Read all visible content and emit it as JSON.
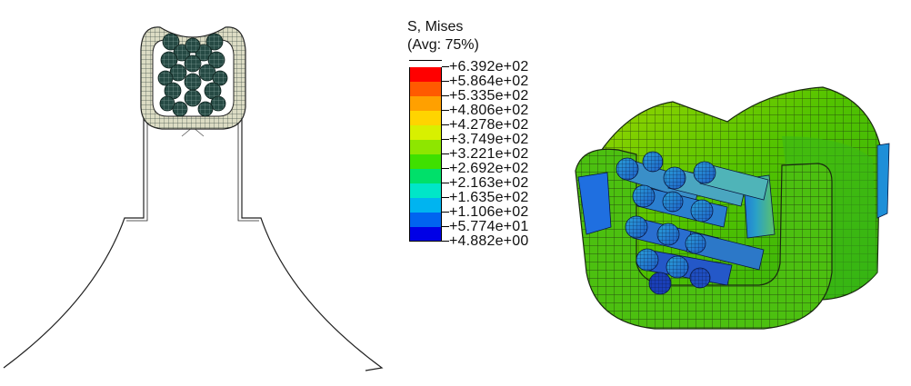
{
  "legend": {
    "title": "S, Mises",
    "subtitle": "(Avg: 75%)",
    "colors": [
      "#ff0000",
      "#ff5a00",
      "#ffa000",
      "#ffd400",
      "#d8f000",
      "#8ee600",
      "#3fe000",
      "#00e06a",
      "#00e6c8",
      "#00b4f0",
      "#0064f0",
      "#0000e6"
    ],
    "labels": [
      "+6.392e+02",
      "+5.864e+02",
      "+5.335e+02",
      "+4.806e+02",
      "+4.278e+02",
      "+3.749e+02",
      "+3.221e+02",
      "+2.692e+02",
      "+2.163e+02",
      "+1.635e+02",
      "+1.106e+02",
      "+5.774e+01",
      "+4.882e+00"
    ]
  }
}
